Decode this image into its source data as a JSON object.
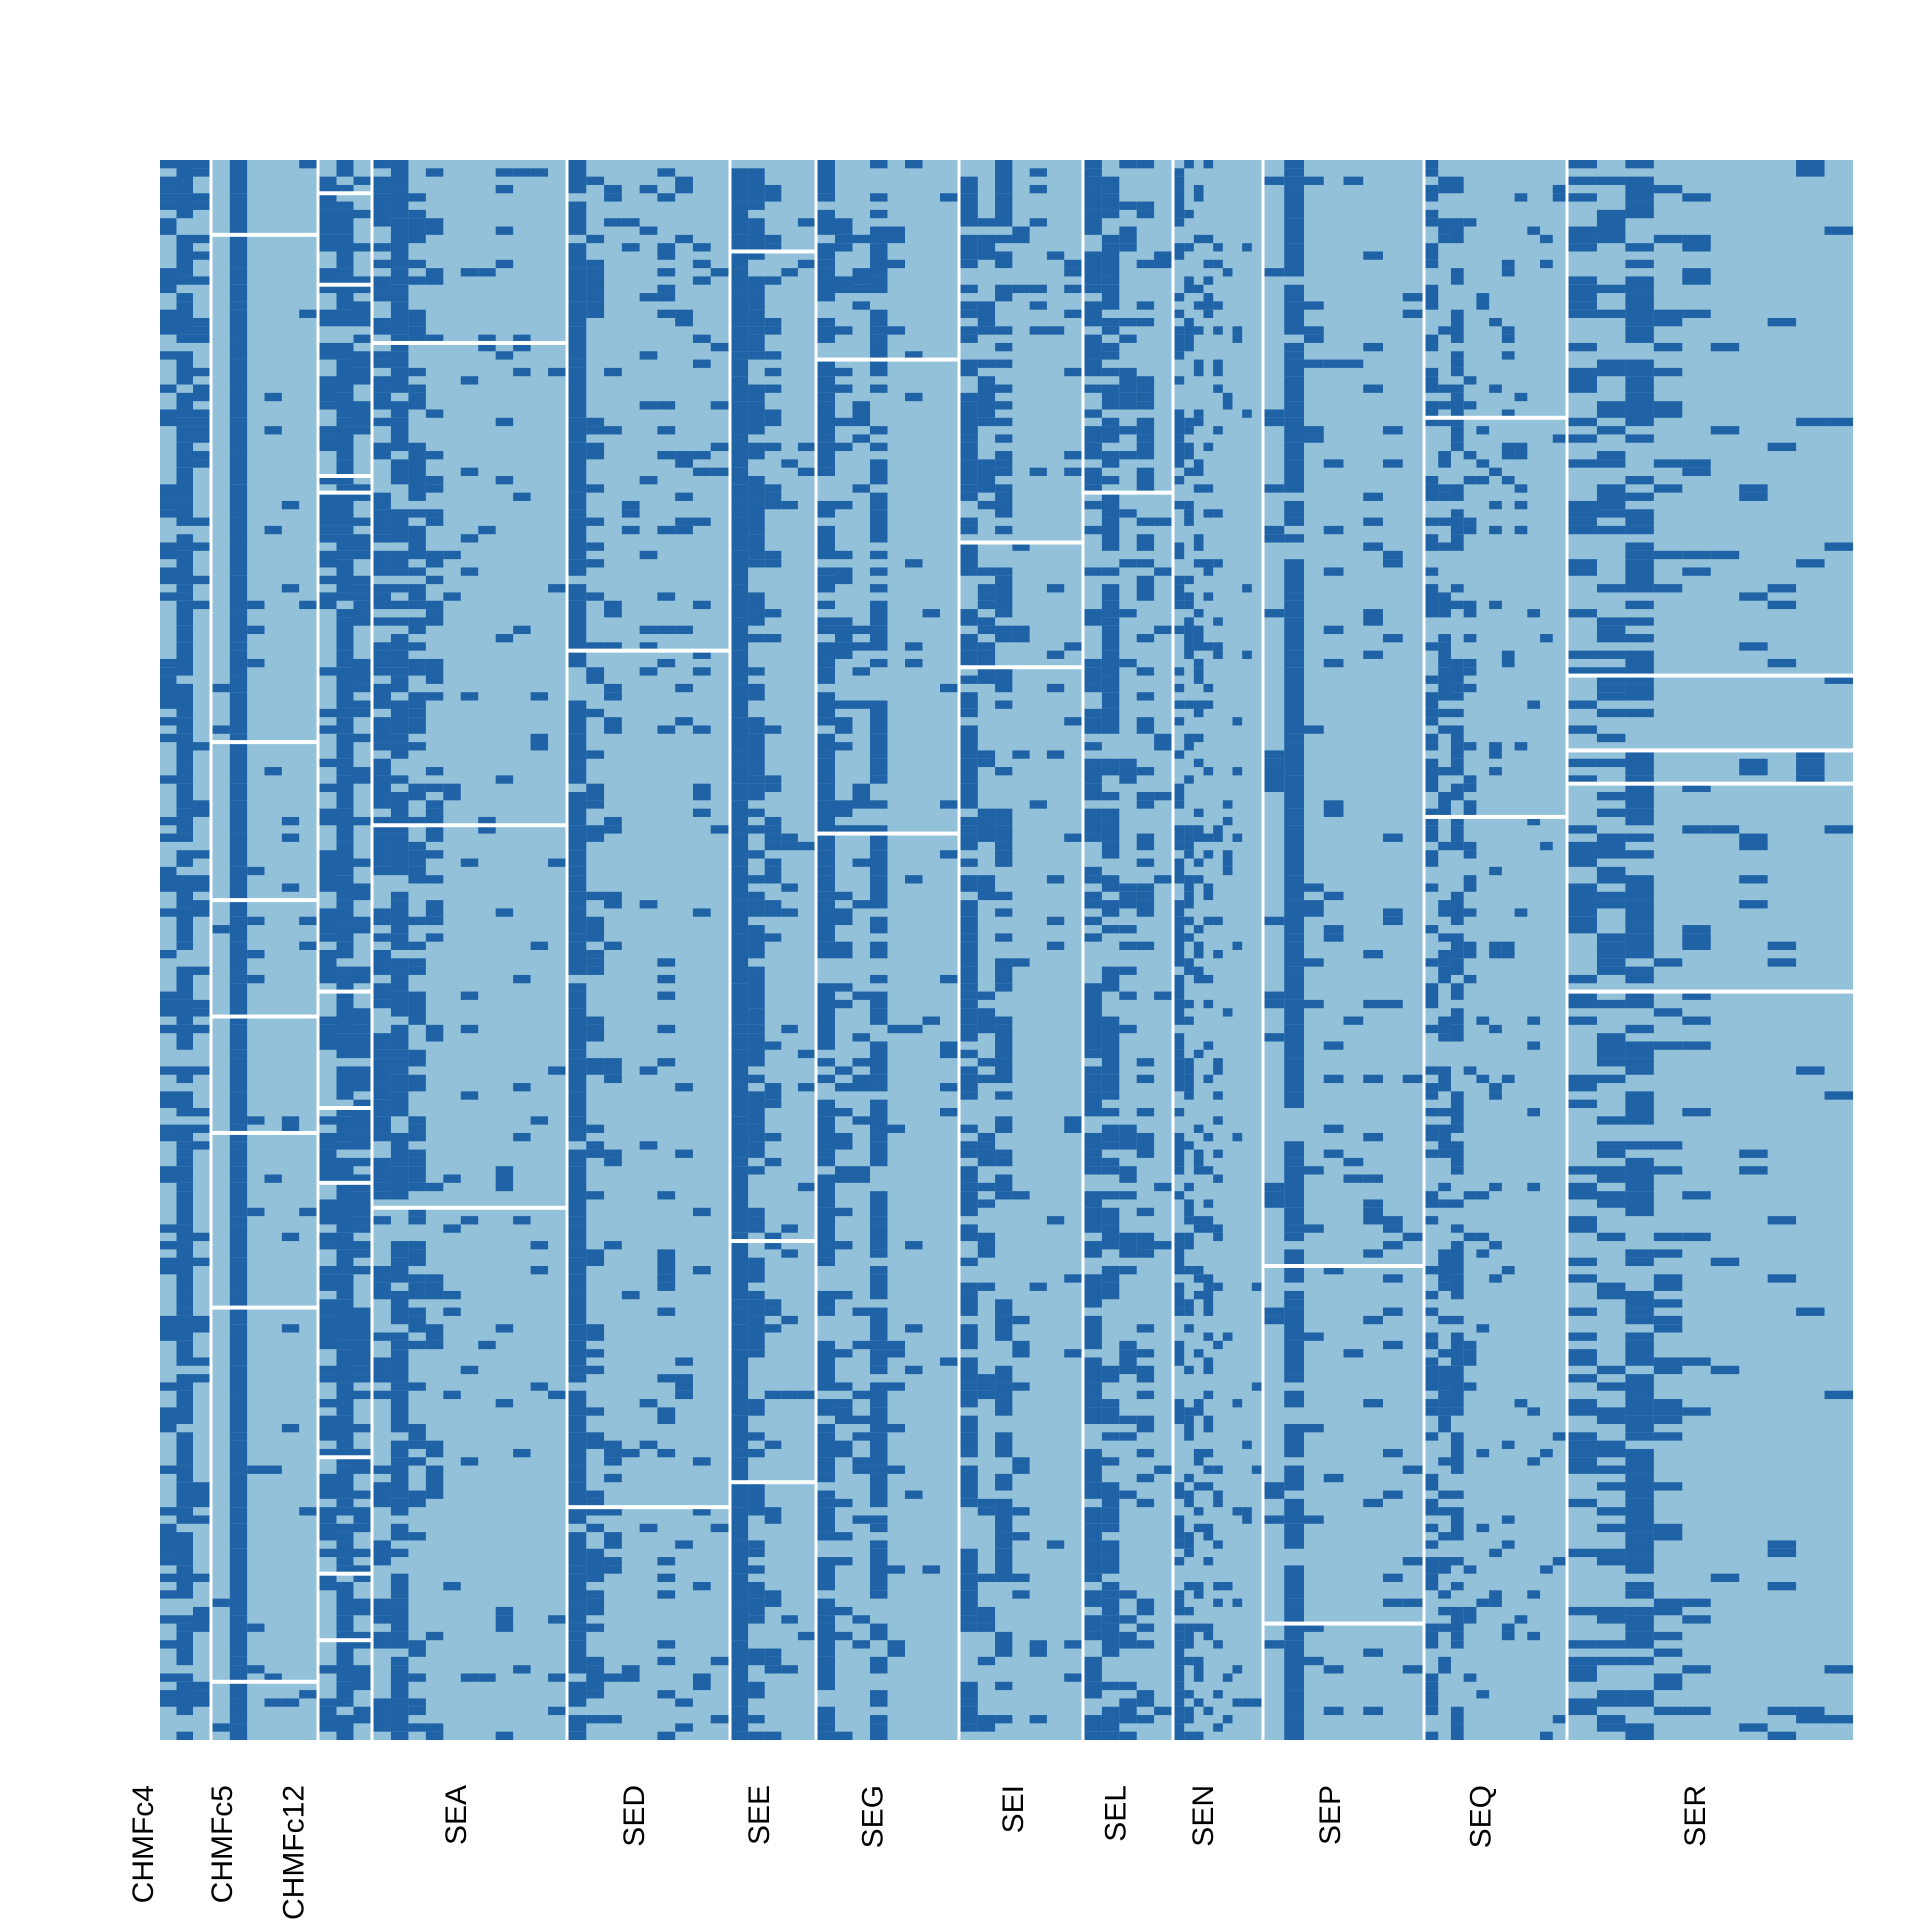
{
  "chart_data": {
    "type": "heatmap",
    "title": "",
    "xlabel": "",
    "ylabel": "",
    "colors": {
      "absent": "#93C1DA",
      "present": "#1F63A6",
      "separator": "#FFFFFF"
    },
    "row_count": 190,
    "columns": [
      {
        "label": "CHMFc4",
        "subcolumns": 3,
        "row_breaks": []
      },
      {
        "label": "CHMFc5",
        "subcolumns": 6,
        "row_breaks": [
          9,
          70,
          89,
          103,
          117,
          138,
          183
        ]
      },
      {
        "label": "CHMFc12",
        "subcolumns": 3,
        "row_breaks": [
          4,
          15,
          38,
          40,
          100,
          114,
          123,
          156,
          170,
          178
        ]
      },
      {
        "label": "SEA",
        "subcolumns": 11,
        "row_breaks": [
          22,
          80,
          126
        ]
      },
      {
        "label": "SED",
        "subcolumns": 9,
        "row_breaks": [
          59,
          162
        ]
      },
      {
        "label": "SEE",
        "subcolumns": 5,
        "row_breaks": [
          11,
          130,
          159
        ]
      },
      {
        "label": "SEG",
        "subcolumns": 8,
        "row_breaks": [
          24,
          81
        ]
      },
      {
        "label": "SEI",
        "subcolumns": 7,
        "row_breaks": [
          46,
          61
        ]
      },
      {
        "label": "SEL",
        "subcolumns": 5,
        "row_breaks": [
          40
        ]
      },
      {
        "label": "SEN",
        "subcolumns": 9,
        "row_breaks": []
      },
      {
        "label": "SEP",
        "subcolumns": 8,
        "row_breaks": [
          133,
          176
        ]
      },
      {
        "label": "SEQ",
        "subcolumns": 11,
        "row_breaks": [
          31,
          79
        ]
      },
      {
        "label": "SER",
        "subcolumns": 10,
        "row_breaks": [
          62,
          71,
          75,
          100
        ]
      }
    ]
  }
}
